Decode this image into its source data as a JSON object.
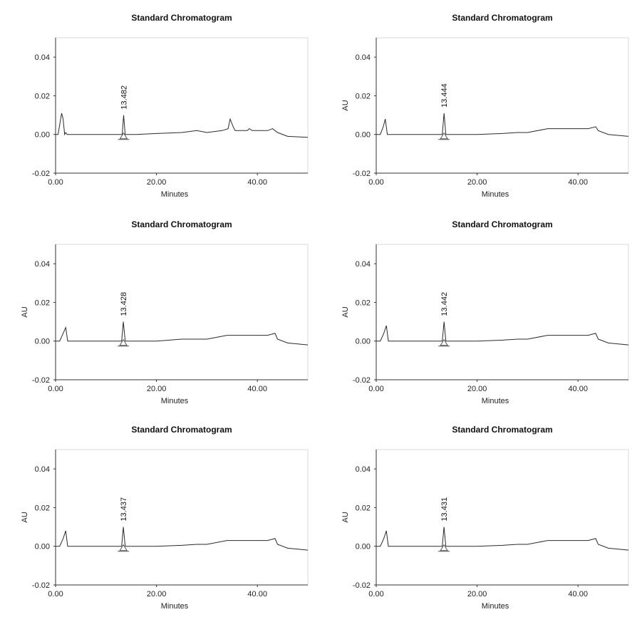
{
  "chart_data": [
    {
      "type": "line",
      "title": "Standard Chromatogram",
      "xlabel": "Minutes",
      "ylabel": "",
      "xlim": [
        0,
        50
      ],
      "ylim": [
        -0.02,
        0.05
      ],
      "xticks": [
        "0.00",
        "20.00",
        "40.00"
      ],
      "yticks": [
        "0.04",
        "0.02",
        "0.00",
        "-0.02"
      ],
      "peak": {
        "x": 13.482,
        "y": 0.01,
        "label": "13.482"
      },
      "series": [
        {
          "x": [
            0,
            0.5,
            1.2,
            1.5,
            1.8,
            2.0,
            2.3,
            5,
            10,
            13.2,
            13.482,
            13.8,
            16,
            20,
            25,
            28,
            30,
            33,
            34.2,
            34.6,
            35.2,
            35.6,
            36,
            38,
            38.4,
            39,
            42,
            43,
            44,
            46,
            50
          ],
          "y": [
            0.0,
            0.0,
            0.011,
            0.008,
            0.0,
            0.001,
            0.0,
            0.0,
            0.0,
            0.0,
            0.01,
            0.0,
            0.0,
            0.0005,
            0.001,
            0.002,
            0.001,
            0.002,
            0.003,
            0.008,
            0.004,
            0.002,
            0.002,
            0.002,
            0.003,
            0.002,
            0.002,
            0.003,
            0.001,
            -0.001,
            -0.0015
          ]
        }
      ]
    },
    {
      "type": "line",
      "title": "Standard Chromatogram",
      "xlabel": "Minutes",
      "ylabel": "AU",
      "xlim": [
        0,
        50
      ],
      "ylim": [
        -0.02,
        0.05
      ],
      "xticks": [
        "0.00",
        "20.00",
        "40.00"
      ],
      "yticks": [
        "0.04",
        "0.02",
        "0.00",
        "-0.02"
      ],
      "peak": {
        "x": 13.444,
        "y": 0.011,
        "label": "13.444"
      },
      "series": [
        {
          "x": [
            0,
            0.8,
            1.4,
            1.8,
            2.2,
            5,
            10,
            13.1,
            13.444,
            13.8,
            16,
            20,
            25,
            28,
            30,
            34,
            36,
            40,
            42,
            43.5,
            44,
            46,
            50
          ],
          "y": [
            0.0,
            0.0,
            0.004,
            0.008,
            0.0,
            0.0,
            0.0,
            0.0,
            0.011,
            0.0,
            0.0,
            0.0,
            0.0005,
            0.001,
            0.001,
            0.003,
            0.003,
            0.003,
            0.003,
            0.004,
            0.002,
            0.0,
            -0.001
          ]
        }
      ]
    },
    {
      "type": "line",
      "title": "Standard Chromatogram",
      "xlabel": "Minutes",
      "ylabel": "AU",
      "xlim": [
        0,
        50
      ],
      "ylim": [
        -0.02,
        0.05
      ],
      "xticks": [
        "0.00",
        "20.00",
        "40.00"
      ],
      "yticks": [
        "0.04",
        "0.02",
        "0.00",
        "-0.02"
      ],
      "peak": {
        "x": 13.428,
        "y": 0.01,
        "label": "13.428"
      },
      "series": [
        {
          "x": [
            0,
            0.8,
            1.5,
            2.0,
            2.4,
            5,
            10,
            13.1,
            13.428,
            13.8,
            16,
            20,
            25,
            28,
            30,
            34,
            36,
            40,
            42,
            43.5,
            44,
            46,
            50
          ],
          "y": [
            0.0,
            0.0,
            0.004,
            0.007,
            0.0,
            0.0,
            0.0,
            0.0,
            0.01,
            0.0,
            0.0,
            0.0,
            0.001,
            0.001,
            0.001,
            0.003,
            0.003,
            0.003,
            0.003,
            0.004,
            0.001,
            -0.001,
            -0.002
          ]
        }
      ]
    },
    {
      "type": "line",
      "title": "Standard Chromatogram",
      "xlabel": "Minutes",
      "ylabel": "AU",
      "xlim": [
        0,
        50
      ],
      "ylim": [
        -0.02,
        0.05
      ],
      "xticks": [
        "0.00",
        "20.00",
        "40.00"
      ],
      "yticks": [
        "0.04",
        "0.02",
        "0.00",
        "-0.02"
      ],
      "peak": {
        "x": 13.442,
        "y": 0.01,
        "label": "13.442"
      },
      "series": [
        {
          "x": [
            0,
            0.8,
            1.5,
            2.0,
            2.4,
            5,
            10,
            13.1,
            13.442,
            13.8,
            16,
            20,
            25,
            28,
            30,
            34,
            36,
            40,
            42,
            43.5,
            44,
            46,
            50
          ],
          "y": [
            0.0,
            0.0,
            0.004,
            0.008,
            0.0,
            0.0,
            0.0,
            0.0,
            0.01,
            0.0,
            0.0,
            0.0,
            0.0005,
            0.001,
            0.001,
            0.003,
            0.003,
            0.003,
            0.003,
            0.004,
            0.001,
            -0.001,
            -0.002
          ]
        }
      ]
    },
    {
      "type": "line",
      "title": "Standard Chromatogram",
      "xlabel": "Minutes",
      "ylabel": "AU",
      "xlim": [
        0,
        50
      ],
      "ylim": [
        -0.02,
        0.05
      ],
      "xticks": [
        "0.00",
        "20.00",
        "40.00"
      ],
      "yticks": [
        "0.04",
        "0.02",
        "0.00",
        "-0.02"
      ],
      "peak": {
        "x": 13.437,
        "y": 0.01,
        "label": "13.437"
      },
      "series": [
        {
          "x": [
            0,
            0.8,
            1.5,
            2.0,
            2.4,
            5,
            10,
            13.1,
            13.437,
            13.8,
            16,
            20,
            25,
            28,
            30,
            34,
            36,
            40,
            42,
            43.5,
            44,
            46,
            50
          ],
          "y": [
            0.0,
            0.0,
            0.004,
            0.008,
            0.0,
            0.0,
            0.0,
            0.0,
            0.01,
            0.0,
            0.0,
            0.0,
            0.0005,
            0.001,
            0.001,
            0.003,
            0.003,
            0.003,
            0.003,
            0.004,
            0.001,
            -0.001,
            -0.002
          ]
        }
      ]
    },
    {
      "type": "line",
      "title": "Standard Chromatogram",
      "xlabel": "Minutes",
      "ylabel": "AU",
      "xlim": [
        0,
        50
      ],
      "ylim": [
        -0.02,
        0.05
      ],
      "xticks": [
        "0.00",
        "20.00",
        "40.00"
      ],
      "yticks": [
        "0.04",
        "0.02",
        "0.00",
        "-0.02"
      ],
      "peak": {
        "x": 13.431,
        "y": 0.01,
        "label": "13.431"
      },
      "series": [
        {
          "x": [
            0,
            0.8,
            1.5,
            2.0,
            2.4,
            5,
            10,
            13.1,
            13.431,
            13.8,
            16,
            20,
            25,
            28,
            30,
            34,
            36,
            40,
            42,
            43.5,
            44,
            46,
            50
          ],
          "y": [
            0.0,
            0.0,
            0.004,
            0.008,
            0.0,
            0.0,
            0.0,
            0.0,
            0.01,
            0.0,
            0.0,
            0.0,
            0.0005,
            0.001,
            0.001,
            0.003,
            0.003,
            0.003,
            0.003,
            0.004,
            0.001,
            -0.001,
            -0.002
          ]
        }
      ]
    }
  ]
}
